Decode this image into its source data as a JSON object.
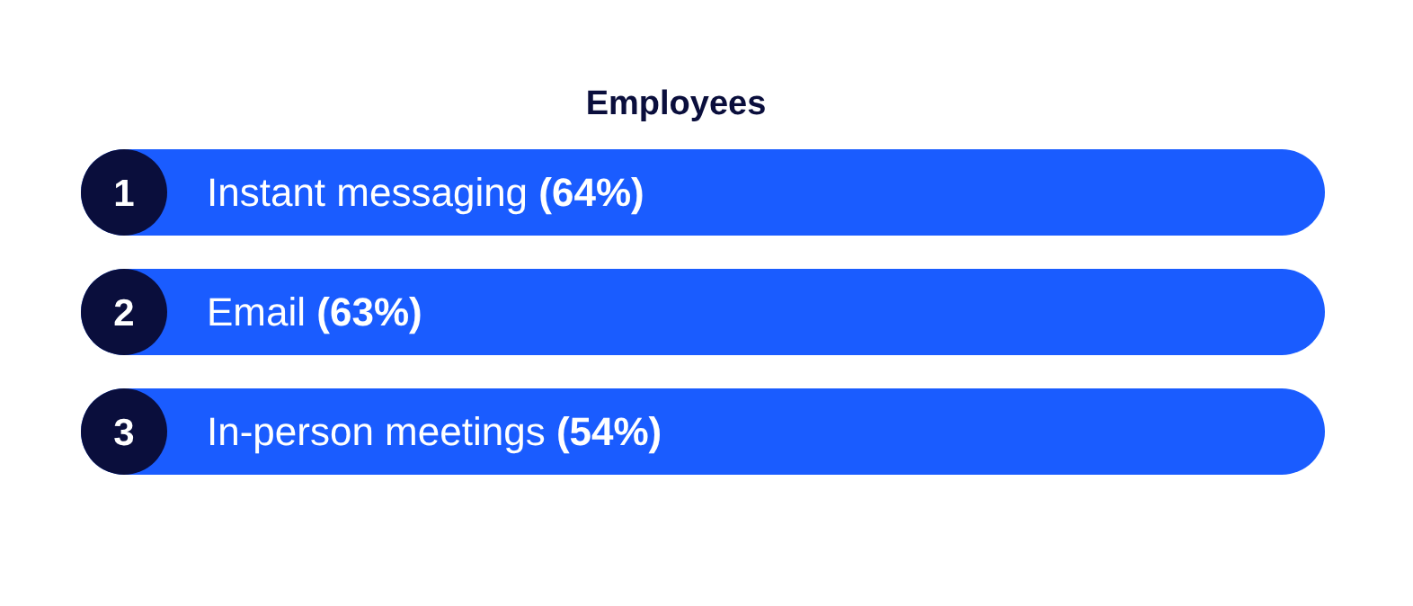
{
  "chart_data": {
    "type": "other",
    "title": "Employees",
    "categories": [
      "Instant messaging",
      "Email",
      "In-person meetings"
    ],
    "values": [
      64,
      63,
      54
    ],
    "value_labels": [
      "(64%)",
      "(63%)",
      "(54%)"
    ],
    "color": "#1a5cff",
    "annotations": [
      {
        "text": "1",
        "y": "Instant messaging"
      },
      {
        "text": "2",
        "y": "Email"
      },
      {
        "text": "3",
        "y": "In-person meetings"
      }
    ]
  }
}
